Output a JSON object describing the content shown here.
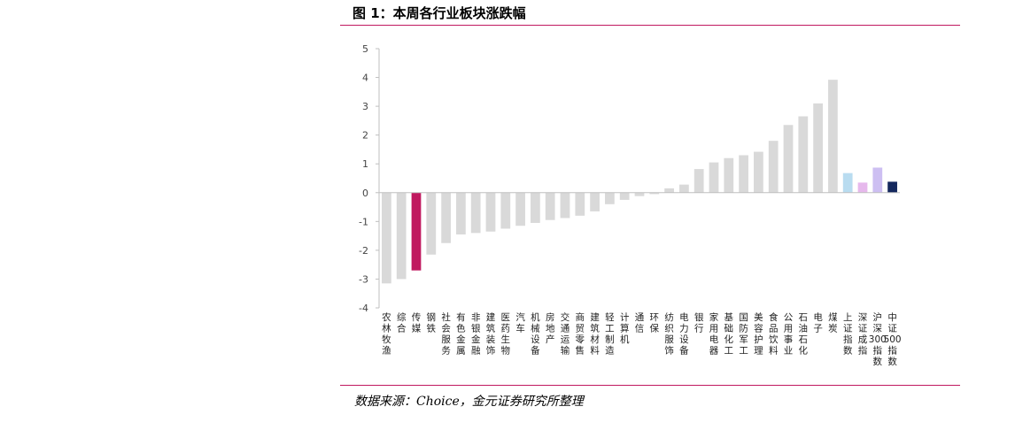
{
  "figure": {
    "title": "图 1：本周各行业板块涨跌幅",
    "source": "数据来源：Choice，金元证券研究所整理"
  },
  "chart_data": {
    "type": "bar",
    "title": "",
    "xlabel": "",
    "ylabel": "",
    "ylim": [
      -4,
      5
    ],
    "yticks": [
      5,
      4,
      3,
      2,
      1,
      0,
      -1,
      -2,
      -3,
      -4
    ],
    "grid": false,
    "legend": "none",
    "categories": [
      "农林牧渔",
      "综合",
      "传媒",
      "钢铁",
      "社会服务",
      "有色金属",
      "非银金融",
      "建筑装饰",
      "医药生物",
      "汽车",
      "机械设备",
      "房地产",
      "交通运输",
      "商贸零售",
      "建筑材料",
      "轻工制造",
      "计算机",
      "通信",
      "环保",
      "纺织服饰",
      "电力设备",
      "银行",
      "家用电器",
      "基础化工",
      "国防军工",
      "美容护理",
      "食品饮料",
      "公用事业",
      "石油石化",
      "电子",
      "煤炭",
      "上证指数",
      "深证成指",
      "沪深300指数",
      "中证500指数"
    ],
    "values": [
      -3.15,
      -3.0,
      -2.7,
      -2.15,
      -1.75,
      -1.45,
      -1.4,
      -1.35,
      -1.25,
      -1.15,
      -1.05,
      -0.95,
      -0.88,
      -0.8,
      -0.65,
      -0.4,
      -0.25,
      -0.12,
      -0.05,
      0.15,
      0.28,
      0.82,
      1.05,
      1.2,
      1.3,
      1.42,
      1.8,
      2.35,
      2.65,
      3.1,
      3.92,
      0.68,
      0.35,
      0.87,
      0.38
    ],
    "colors": [
      "#d9d9d9",
      "#d9d9d9",
      "#c0195f",
      "#d9d9d9",
      "#d9d9d9",
      "#d9d9d9",
      "#d9d9d9",
      "#d9d9d9",
      "#d9d9d9",
      "#d9d9d9",
      "#d9d9d9",
      "#d9d9d9",
      "#d9d9d9",
      "#d9d9d9",
      "#d9d9d9",
      "#d9d9d9",
      "#d9d9d9",
      "#d9d9d9",
      "#d9d9d9",
      "#d9d9d9",
      "#d9d9d9",
      "#d9d9d9",
      "#d9d9d9",
      "#d9d9d9",
      "#d9d9d9",
      "#d9d9d9",
      "#d9d9d9",
      "#d9d9d9",
      "#d9d9d9",
      "#d9d9d9",
      "#d9d9d9",
      "#b9dcf0",
      "#e6b8ec",
      "#cdbff2",
      "#14285e"
    ]
  }
}
